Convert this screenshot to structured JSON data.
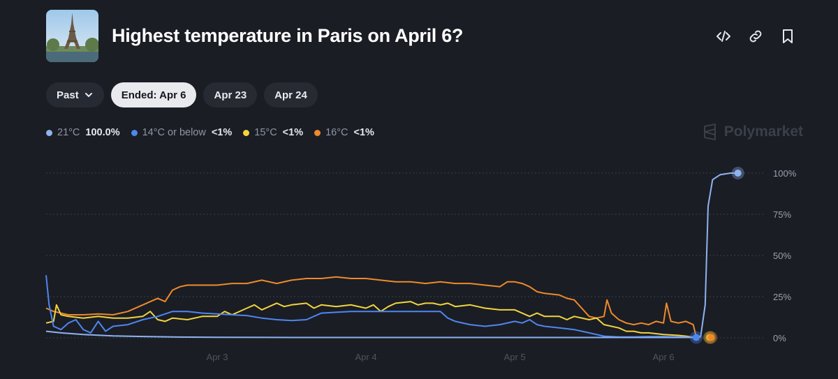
{
  "header": {
    "title": "Highest temperature in Paris on April 6?",
    "thumbnail_icon": "eiffel-tower-image"
  },
  "actions": [
    {
      "name": "embed-code-icon"
    },
    {
      "name": "link-icon"
    },
    {
      "name": "bookmark-icon"
    }
  ],
  "filters": {
    "past_label": "Past",
    "ended_label": "Ended: Apr 6",
    "date2_label": "Apr 23",
    "date3_label": "Apr 24"
  },
  "legend": [
    {
      "label": "21°C",
      "value": "100.0%",
      "color": "#8fb3f0"
    },
    {
      "label": "14°C or below",
      "value": "<1%",
      "color": "#4f86f0"
    },
    {
      "label": "15°C",
      "value": "<1%",
      "color": "#f2d43e"
    },
    {
      "label": "16°C",
      "value": "<1%",
      "color": "#ef8a2a"
    }
  ],
  "brand": {
    "name": "Polymarket"
  },
  "chart_data": {
    "type": "line",
    "title": "Highest temperature in Paris on April 6?",
    "x_ticks": [
      {
        "label": "Apr 3",
        "x": 3.0
      },
      {
        "label": "Apr 4",
        "x": 4.0
      },
      {
        "label": "Apr 5",
        "x": 5.0
      },
      {
        "label": "Apr 6",
        "x": 6.0
      }
    ],
    "xlim": [
      1.85,
      6.68
    ],
    "y_ticks": [
      "100%",
      "75%",
      "50%",
      "25%",
      "0%"
    ],
    "ylim": [
      0,
      100
    ],
    "grid": true,
    "series": [
      {
        "name": "21°C",
        "color": "#8fb3f0",
        "points": [
          [
            1.85,
            4
          ],
          [
            1.95,
            3
          ],
          [
            2.1,
            2
          ],
          [
            2.3,
            1.2
          ],
          [
            2.5,
            0.8
          ],
          [
            2.7,
            0.5
          ],
          [
            3.0,
            0.3
          ],
          [
            3.5,
            0.2
          ],
          [
            4.0,
            0.2
          ],
          [
            4.5,
            0.2
          ],
          [
            5.0,
            0.2
          ],
          [
            5.5,
            0.2
          ],
          [
            6.0,
            0.2
          ],
          [
            6.2,
            0.2
          ],
          [
            6.25,
            1
          ],
          [
            6.28,
            20
          ],
          [
            6.3,
            80
          ],
          [
            6.33,
            96
          ],
          [
            6.38,
            99
          ],
          [
            6.45,
            100
          ],
          [
            6.5,
            100
          ]
        ]
      },
      {
        "name": "14°C or below",
        "color": "#4f86f0",
        "points": [
          [
            1.85,
            38
          ],
          [
            1.87,
            20
          ],
          [
            1.9,
            7
          ],
          [
            1.95,
            5
          ],
          [
            2.0,
            9
          ],
          [
            2.05,
            11
          ],
          [
            2.1,
            5
          ],
          [
            2.15,
            3
          ],
          [
            2.2,
            10
          ],
          [
            2.25,
            4
          ],
          [
            2.3,
            7
          ],
          [
            2.4,
            8
          ],
          [
            2.5,
            11
          ],
          [
            2.6,
            13
          ],
          [
            2.7,
            16
          ],
          [
            2.8,
            16
          ],
          [
            2.9,
            15
          ],
          [
            3.0,
            14.5
          ],
          [
            3.1,
            14
          ],
          [
            3.2,
            13.5
          ],
          [
            3.3,
            12
          ],
          [
            3.4,
            11
          ],
          [
            3.5,
            10.5
          ],
          [
            3.6,
            11
          ],
          [
            3.7,
            15
          ],
          [
            3.8,
            15.5
          ],
          [
            3.9,
            16
          ],
          [
            4.0,
            16
          ],
          [
            4.1,
            16
          ],
          [
            4.2,
            16
          ],
          [
            4.3,
            16
          ],
          [
            4.4,
            16
          ],
          [
            4.5,
            16
          ],
          [
            4.55,
            12
          ],
          [
            4.6,
            10
          ],
          [
            4.7,
            8
          ],
          [
            4.8,
            7
          ],
          [
            4.9,
            8
          ],
          [
            5.0,
            10
          ],
          [
            5.05,
            9
          ],
          [
            5.1,
            11
          ],
          [
            5.15,
            8
          ],
          [
            5.2,
            7
          ],
          [
            5.3,
            6
          ],
          [
            5.4,
            5
          ],
          [
            5.5,
            3
          ],
          [
            5.6,
            1
          ],
          [
            5.7,
            0.5
          ],
          [
            5.8,
            0.5
          ],
          [
            5.9,
            0.7
          ],
          [
            6.0,
            0.8
          ],
          [
            6.1,
            0.5
          ],
          [
            6.2,
            0.3
          ]
        ]
      },
      {
        "name": "15°C",
        "color": "#f2d43e",
        "points": [
          [
            1.85,
            9
          ],
          [
            1.9,
            10
          ],
          [
            1.92,
            20
          ],
          [
            1.95,
            14
          ],
          [
            2.0,
            13
          ],
          [
            2.1,
            12
          ],
          [
            2.2,
            13
          ],
          [
            2.3,
            12
          ],
          [
            2.4,
            12
          ],
          [
            2.5,
            13
          ],
          [
            2.55,
            16
          ],
          [
            2.6,
            11
          ],
          [
            2.65,
            10
          ],
          [
            2.7,
            12
          ],
          [
            2.8,
            11
          ],
          [
            2.9,
            13
          ],
          [
            3.0,
            13
          ],
          [
            3.05,
            16
          ],
          [
            3.1,
            14
          ],
          [
            3.2,
            18
          ],
          [
            3.25,
            20
          ],
          [
            3.3,
            17
          ],
          [
            3.4,
            21
          ],
          [
            3.45,
            19
          ],
          [
            3.5,
            20
          ],
          [
            3.6,
            21
          ],
          [
            3.65,
            18
          ],
          [
            3.7,
            20
          ],
          [
            3.8,
            19
          ],
          [
            3.9,
            20
          ],
          [
            4.0,
            18
          ],
          [
            4.05,
            20
          ],
          [
            4.1,
            16
          ],
          [
            4.15,
            19
          ],
          [
            4.2,
            21
          ],
          [
            4.3,
            22
          ],
          [
            4.35,
            20
          ],
          [
            4.4,
            21
          ],
          [
            4.45,
            21
          ],
          [
            4.5,
            20
          ],
          [
            4.55,
            21
          ],
          [
            4.6,
            19
          ],
          [
            4.7,
            20
          ],
          [
            4.75,
            19
          ],
          [
            4.8,
            18
          ],
          [
            4.9,
            17
          ],
          [
            5.0,
            17
          ],
          [
            5.1,
            13
          ],
          [
            5.15,
            15
          ],
          [
            5.2,
            13
          ],
          [
            5.3,
            13
          ],
          [
            5.35,
            11
          ],
          [
            5.4,
            13
          ],
          [
            5.5,
            11
          ],
          [
            5.55,
            12
          ],
          [
            5.6,
            8
          ],
          [
            5.7,
            6
          ],
          [
            5.75,
            4
          ],
          [
            5.8,
            4
          ],
          [
            5.85,
            3
          ],
          [
            5.9,
            3
          ],
          [
            6.0,
            2
          ],
          [
            6.1,
            1.5
          ],
          [
            6.15,
            1
          ],
          [
            6.2,
            0.4
          ]
        ]
      },
      {
        "name": "16°C",
        "color": "#ef8a2a",
        "points": [
          [
            1.85,
            18
          ],
          [
            1.9,
            16
          ],
          [
            2.0,
            14
          ],
          [
            2.1,
            14
          ],
          [
            2.2,
            14.5
          ],
          [
            2.3,
            14
          ],
          [
            2.4,
            16
          ],
          [
            2.5,
            20
          ],
          [
            2.6,
            24
          ],
          [
            2.65,
            22
          ],
          [
            2.7,
            29
          ],
          [
            2.75,
            31
          ],
          [
            2.8,
            32
          ],
          [
            2.9,
            32
          ],
          [
            3.0,
            32
          ],
          [
            3.1,
            33
          ],
          [
            3.2,
            33
          ],
          [
            3.3,
            35
          ],
          [
            3.4,
            33
          ],
          [
            3.5,
            35
          ],
          [
            3.6,
            36
          ],
          [
            3.7,
            36
          ],
          [
            3.8,
            37
          ],
          [
            3.9,
            36
          ],
          [
            4.0,
            36
          ],
          [
            4.1,
            35
          ],
          [
            4.2,
            34
          ],
          [
            4.3,
            34
          ],
          [
            4.4,
            33
          ],
          [
            4.5,
            34
          ],
          [
            4.6,
            33
          ],
          [
            4.7,
            33
          ],
          [
            4.8,
            32
          ],
          [
            4.9,
            31
          ],
          [
            4.95,
            34
          ],
          [
            5.0,
            34
          ],
          [
            5.05,
            33
          ],
          [
            5.1,
            31
          ],
          [
            5.15,
            28
          ],
          [
            5.2,
            27
          ],
          [
            5.3,
            26
          ],
          [
            5.35,
            24
          ],
          [
            5.4,
            23
          ],
          [
            5.45,
            18
          ],
          [
            5.5,
            13
          ],
          [
            5.55,
            12
          ],
          [
            5.6,
            13
          ],
          [
            5.62,
            23
          ],
          [
            5.65,
            15
          ],
          [
            5.7,
            11
          ],
          [
            5.75,
            9
          ],
          [
            5.8,
            8
          ],
          [
            5.85,
            9
          ],
          [
            5.9,
            8
          ],
          [
            5.95,
            10
          ],
          [
            6.0,
            9
          ],
          [
            6.02,
            21
          ],
          [
            6.05,
            10
          ],
          [
            6.1,
            9
          ],
          [
            6.15,
            10
          ],
          [
            6.2,
            8
          ],
          [
            6.22,
            0.5
          ],
          [
            6.25,
            0.3
          ]
        ]
      }
    ],
    "end_markers": [
      {
        "series": "21°C",
        "x": 6.5,
        "y": 100
      },
      {
        "series": "14°C or below",
        "x": 6.22,
        "y": 0.2
      },
      {
        "series": "15°C",
        "x": 6.31,
        "y": 0.2
      },
      {
        "series": "16°C",
        "x": 6.32,
        "y": 0.2
      }
    ]
  }
}
